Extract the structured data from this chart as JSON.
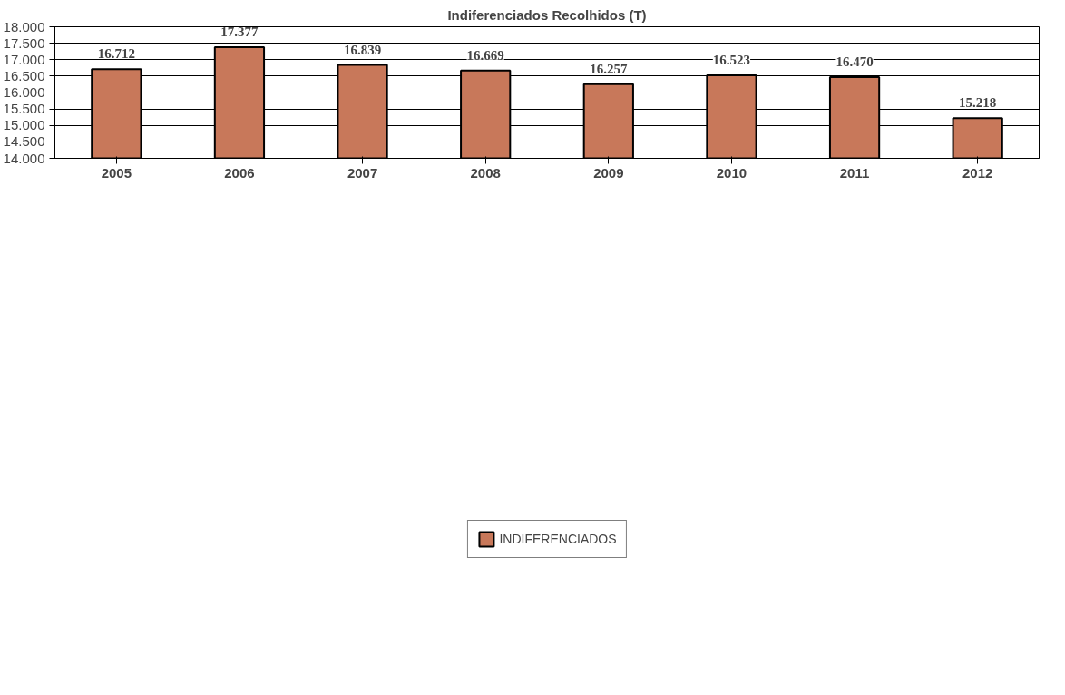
{
  "chart_data": {
    "type": "bar",
    "title": "Indiferenciados Recolhidos (T)",
    "categories": [
      "2005",
      "2006",
      "2007",
      "2008",
      "2009",
      "2010",
      "2011",
      "2012"
    ],
    "series": [
      {
        "name": "INDIFERENCIADOS",
        "color": "#c8785a",
        "values": [
          16712,
          17377,
          16839,
          16669,
          16257,
          16523,
          16470,
          15218
        ],
        "value_labels": [
          "16.712",
          "17.377",
          "16.839",
          "16.669",
          "16.257",
          "16.523",
          "16.470",
          "15.218"
        ]
      }
    ],
    "ylim": [
      14000,
      18000
    ],
    "yticks": [
      {
        "value": 14000,
        "label": "14.000"
      },
      {
        "value": 14500,
        "label": "14.500"
      },
      {
        "value": 15000,
        "label": "15.000"
      },
      {
        "value": 15500,
        "label": "15.500"
      },
      {
        "value": 16000,
        "label": "16.000"
      },
      {
        "value": 16500,
        "label": "16.500"
      },
      {
        "value": 17000,
        "label": "17.000"
      },
      {
        "value": 17500,
        "label": "17.500"
      },
      {
        "value": 18000,
        "label": "18.000"
      }
    ],
    "grid": "y",
    "legend": "bottom"
  }
}
